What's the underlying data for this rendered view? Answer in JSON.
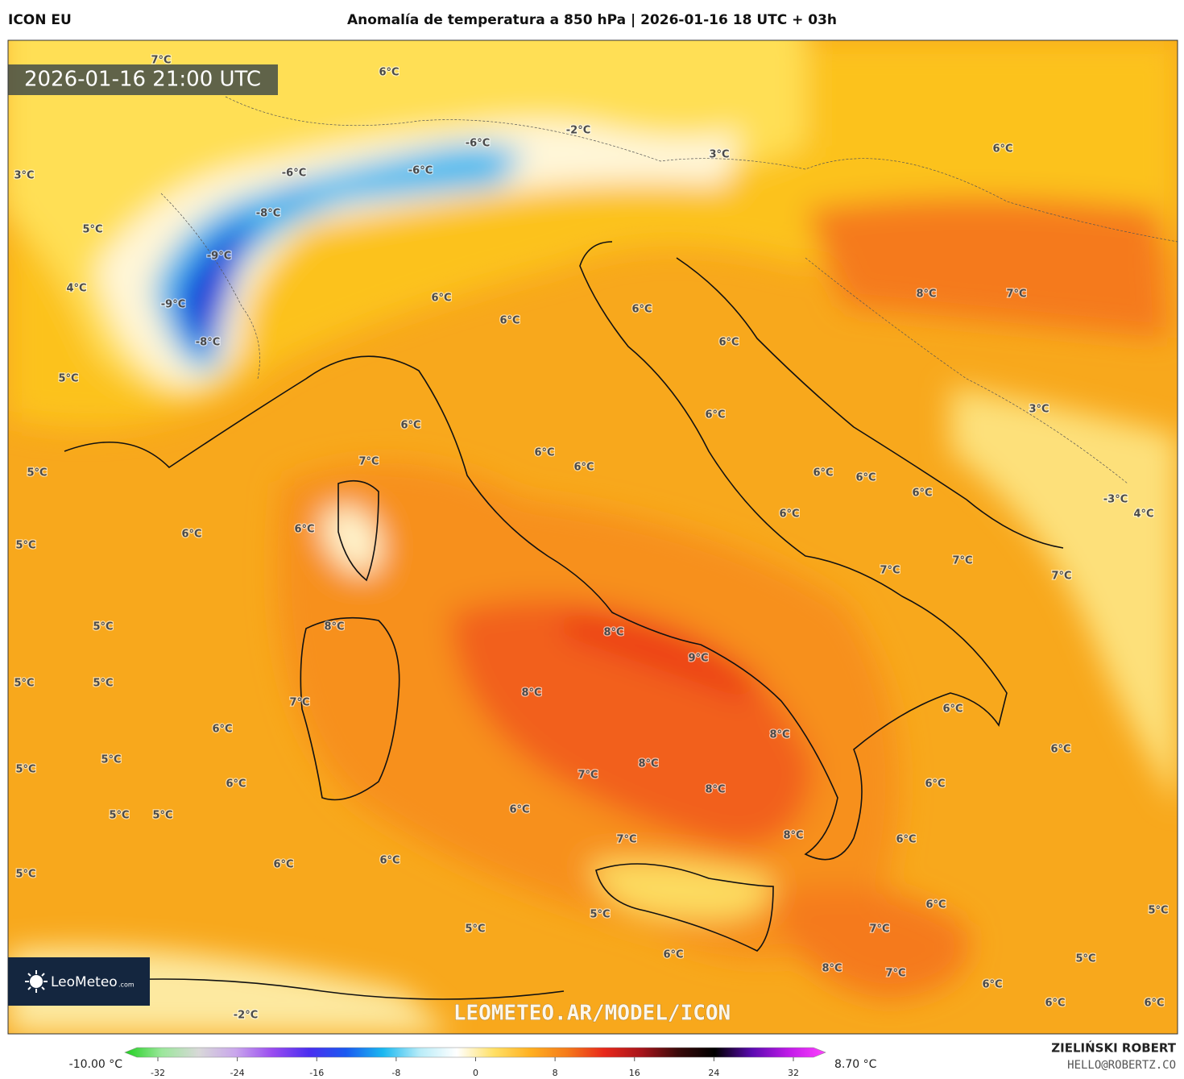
{
  "header": {
    "model": "ICON EU",
    "title": "Anomalía de temperatura a 850 hPa | 2026-01-16 18 UTC + 03h"
  },
  "map": {
    "valid_time": "2026-01-16 21:00 UTC",
    "watermark": "LEOMETEO.AR/MODEL/ICON",
    "logo": "LeoMeteo",
    "logo_suffix": ".com",
    "labels": [
      "7°C",
      "6°C",
      "3°C",
      "5°C",
      "4°C",
      "5°C",
      "-6°C",
      "-6°C",
      "-6°C",
      "-2°C",
      "3°C",
      "6°C",
      "-8°C",
      "-9°C",
      "-9°C",
      "-8°C",
      "6°C",
      "6°C",
      "6°C",
      "8°C",
      "7°C",
      "6°C",
      "6°C",
      "3°C",
      "6°C",
      "7°C",
      "6°C",
      "6°C",
      "5°C",
      "6°C",
      "6°C",
      "6°C",
      "6°C",
      "-3°C",
      "4°C",
      "6°C",
      "6°C",
      "5°C",
      "7°C",
      "7°C",
      "7°C",
      "5°C",
      "8°C",
      "8°C",
      "9°C",
      "5°C",
      "5°C",
      "8°C",
      "7°C",
      "6°C",
      "6°C",
      "8°C",
      "6°C",
      "5°C",
      "8°C",
      "5°C",
      "7°C",
      "6°C",
      "6°C",
      "8°C",
      "5°C",
      "5°C",
      "6°C",
      "7°C",
      "8°C",
      "6°C",
      "6°C",
      "6°C",
      "5°C",
      "6°C",
      "5°C",
      "5°C",
      "7°C",
      "5°C",
      "6°C",
      "5°C",
      "8°C",
      "7°C",
      "6°C",
      "6°C",
      "6°C",
      "-2°C"
    ]
  },
  "colorbar": {
    "min_label": "-10.00 °C",
    "max_label": "8.70 °C",
    "ticks": [
      -32,
      -24,
      -16,
      -8,
      0,
      8,
      16,
      24,
      32
    ],
    "colors": [
      "#1fd01f",
      "#9be79b",
      "#d8d8d8",
      "#c9a6ec",
      "#9a4cf0",
      "#4a2ef0",
      "#1a5af0",
      "#1ab8f0",
      "#b8ecf8",
      "#ffffff",
      "#ffe066",
      "#ffb020",
      "#f57a1a",
      "#e8281a",
      "#a8141a",
      "#3a0a0a",
      "#000000",
      "#5a0ab0",
      "#c01ae8",
      "#ff40ff"
    ]
  },
  "footer": {
    "author": "ZIELIŃSKI ROBERT",
    "contact": "HELLO@ROBERTZ.CO"
  }
}
